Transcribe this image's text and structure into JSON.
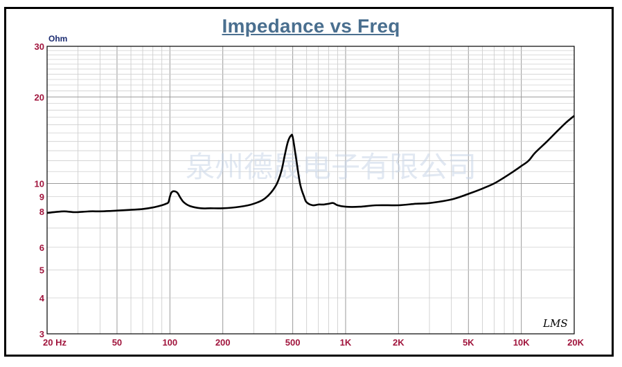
{
  "chart_data": {
    "type": "line",
    "title": "Impedance vs Freq",
    "ylabel": "Ohm",
    "xlabel": "",
    "x_scale": "log",
    "y_scale": "log",
    "xlim": [
      20,
      20000
    ],
    "ylim": [
      3,
      30
    ],
    "grid": true,
    "x_ticks": [
      {
        "value": 20,
        "label": "20  Hz"
      },
      {
        "value": 50,
        "label": "50"
      },
      {
        "value": 100,
        "label": "100"
      },
      {
        "value": 200,
        "label": "200"
      },
      {
        "value": 500,
        "label": "500"
      },
      {
        "value": 1000,
        "label": "1K"
      },
      {
        "value": 2000,
        "label": "2K"
      },
      {
        "value": 5000,
        "label": "5K"
      },
      {
        "value": 10000,
        "label": "10K"
      },
      {
        "value": 20000,
        "label": "20K"
      }
    ],
    "y_ticks": [
      {
        "value": 30,
        "label": "30"
      },
      {
        "value": 20,
        "label": "20"
      },
      {
        "value": 10,
        "label": "10"
      },
      {
        "value": 9,
        "label": "9"
      },
      {
        "value": 8,
        "label": "8"
      },
      {
        "value": 6,
        "label": "6"
      },
      {
        "value": 5,
        "label": "5"
      },
      {
        "value": 4,
        "label": "4"
      },
      {
        "value": 3,
        "label": "3"
      }
    ],
    "series": [
      {
        "color": "#000000",
        "x": [
          20,
          22,
          25,
          28,
          30,
          35,
          40,
          45,
          50,
          60,
          70,
          80,
          90,
          95,
          98,
          100,
          102,
          105,
          110,
          115,
          120,
          130,
          150,
          170,
          200,
          250,
          300,
          350,
          400,
          430,
          450,
          470,
          490,
          500,
          520,
          550,
          580,
          600,
          650,
          700,
          750,
          800,
          850,
          900,
          1000,
          1200,
          1500,
          2000,
          2500,
          3000,
          4000,
          5000,
          6000,
          7000,
          8000,
          9000,
          10000,
          11000,
          12000,
          14000,
          16000,
          18000,
          20000
        ],
        "y": [
          7.9,
          7.95,
          8.0,
          7.95,
          7.95,
          8.0,
          8.0,
          8.02,
          8.05,
          8.1,
          8.15,
          8.25,
          8.4,
          8.5,
          8.6,
          9.0,
          9.3,
          9.4,
          9.3,
          8.9,
          8.6,
          8.35,
          8.2,
          8.2,
          8.2,
          8.3,
          8.5,
          8.9,
          9.8,
          11.0,
          12.5,
          14.0,
          14.7,
          14.5,
          12.5,
          10.0,
          9.0,
          8.6,
          8.4,
          8.45,
          8.45,
          8.5,
          8.55,
          8.4,
          8.3,
          8.3,
          8.4,
          8.4,
          8.5,
          8.55,
          8.8,
          9.2,
          9.6,
          10.0,
          10.5,
          11.0,
          11.5,
          12.0,
          12.8,
          14.0,
          15.2,
          16.3,
          17.2
        ]
      }
    ]
  },
  "watermark": "泉州德晟电子有限公司",
  "logo_text": "LMS"
}
